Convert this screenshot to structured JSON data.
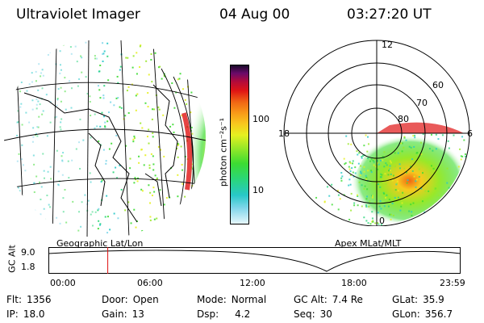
{
  "header": {
    "instrument": "Ultraviolet Imager",
    "date": "04 Aug 00",
    "time": "03:27:20 UT"
  },
  "colorbar": {
    "unit_label": "photon cm⁻²s⁻¹",
    "ticks": [
      {
        "label": "100",
        "value": 100
      },
      {
        "label": "10",
        "value": 10
      }
    ],
    "scale": "log",
    "colors": [
      "#e6f6fb",
      "#7fd6ea",
      "#28c8c8",
      "#2ad67a",
      "#3cdc32",
      "#9ae828",
      "#e6f020",
      "#f8c81e",
      "#f89a18",
      "#f06414",
      "#e01414",
      "#b00a3c",
      "#6a0a6a",
      "#1a0a2a"
    ]
  },
  "panels": {
    "geographic_label": "Geographic Lat/Lon",
    "polar_label": "Apex MLat/MLT",
    "polar_mlt_labels": {
      "top": "12",
      "left": "18",
      "right": "6",
      "bottom": "0"
    },
    "polar_lat_labels": [
      "60",
      "70",
      "80"
    ]
  },
  "altitude_plot": {
    "ylabel": "GC Alt",
    "yticks": [
      "9.0",
      "1.8"
    ],
    "xticks": [
      "00:00",
      "06:00",
      "12:00",
      "18:00",
      "23:59"
    ],
    "marker_time_hours": 3.456,
    "marker_color": "#e01010"
  },
  "info": {
    "flt_label": "Flt:",
    "flt_value": "1356",
    "ip_label": "IP:",
    "ip_value": "18.0",
    "door_label": "Door:",
    "door_value": "Open",
    "gain_label": "Gain:",
    "gain_value": "13",
    "mode_label": "Mode:",
    "mode_value": "Normal",
    "dsp_label": "Dsp:",
    "dsp_value": "4.2",
    "gcalt_label": "GC Alt:",
    "gcalt_value": "7.4 Re",
    "seq_label": "Seq:",
    "seq_value": "30",
    "glat_label": "GLat:",
    "glat_value": "35.9",
    "glon_label": "GLon:",
    "glon_value": "356.7"
  }
}
